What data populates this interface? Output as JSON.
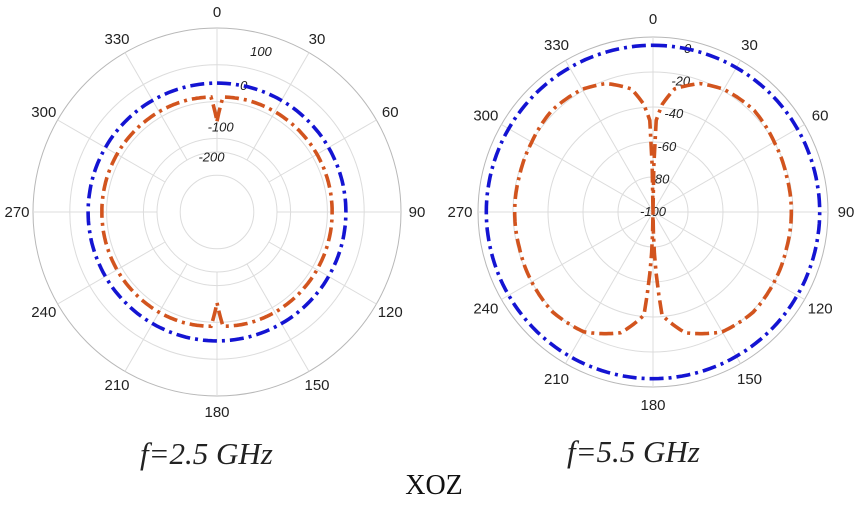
{
  "figure": {
    "plane_label": "XOZ"
  },
  "chart_data": [
    {
      "type": "polar-line",
      "caption": "f=2.5 GHz",
      "angle_ticks": [
        "0",
        "30",
        "60",
        "90",
        "120",
        "150",
        "180",
        "210",
        "240",
        "270",
        "300",
        "330"
      ],
      "radial_ticks": [
        100,
        0,
        -100,
        -200
      ],
      "rlim": [
        -200,
        160
      ],
      "grid": true,
      "series": [
        {
          "color": "#1414d2",
          "style": "dash-dot",
          "r": 0
        },
        {
          "color": "#d2541e",
          "style": "dash-dot",
          "samples": [
            {
              "theta": 0,
              "r": -111
            },
            {
              "theta": 3,
              "r": -40
            },
            {
              "theta": 15,
              "r": -38
            },
            {
              "theta": 30,
              "r": -38
            },
            {
              "theta": 60,
              "r": -39
            },
            {
              "theta": 90,
              "r": -40
            },
            {
              "theta": 120,
              "r": -39
            },
            {
              "theta": 150,
              "r": -38
            },
            {
              "theta": 165,
              "r": -39
            },
            {
              "theta": 177,
              "r": -42
            },
            {
              "theta": 180,
              "r": -111
            },
            {
              "theta": 183,
              "r": -42
            },
            {
              "theta": 195,
              "r": -39
            },
            {
              "theta": 210,
              "r": -38
            },
            {
              "theta": 240,
              "r": -39
            },
            {
              "theta": 270,
              "r": -40
            },
            {
              "theta": 300,
              "r": -39
            },
            {
              "theta": 330,
              "r": -38
            },
            {
              "theta": 345,
              "r": -38
            },
            {
              "theta": 357,
              "r": -40
            },
            {
              "theta": 360,
              "r": -111
            }
          ]
        }
      ]
    },
    {
      "type": "polar-line",
      "caption": "f=5.5 GHz",
      "angle_ticks": [
        "0",
        "30",
        "60",
        "90",
        "120",
        "150",
        "180",
        "210",
        "240",
        "270",
        "300",
        "330"
      ],
      "radial_ticks": [
        0,
        -20,
        -40,
        -60,
        -80,
        -100
      ],
      "rlim": [
        -100,
        5
      ],
      "grid": true,
      "series": [
        {
          "color": "#1414d2",
          "style": "dash-dot",
          "r": 0
        },
        {
          "color": "#d2541e",
          "style": "dash-dot",
          "samples": [
            {
              "theta": 0,
              "r": -100
            },
            {
              "theta": 2,
              "r": -45
            },
            {
              "theta": 5,
              "r": -35
            },
            {
              "theta": 10,
              "r": -25
            },
            {
              "theta": 20,
              "r": -18
            },
            {
              "theta": 30,
              "r": -15
            },
            {
              "theta": 45,
              "r": -14
            },
            {
              "theta": 60,
              "r": -16
            },
            {
              "theta": 75,
              "r": -17
            },
            {
              "theta": 90,
              "r": -17
            },
            {
              "theta": 105,
              "r": -17
            },
            {
              "theta": 120,
              "r": -16
            },
            {
              "theta": 135,
              "r": -15
            },
            {
              "theta": 150,
              "r": -17
            },
            {
              "theta": 165,
              "r": -25
            },
            {
              "theta": 175,
              "r": -38
            },
            {
              "theta": 180,
              "r": -100
            },
            {
              "theta": 185,
              "r": -38
            },
            {
              "theta": 195,
              "r": -25
            },
            {
              "theta": 210,
              "r": -17
            },
            {
              "theta": 225,
              "r": -15
            },
            {
              "theta": 240,
              "r": -16
            },
            {
              "theta": 255,
              "r": -17
            },
            {
              "theta": 270,
              "r": -17
            },
            {
              "theta": 285,
              "r": -17
            },
            {
              "theta": 300,
              "r": -16
            },
            {
              "theta": 315,
              "r": -14
            },
            {
              "theta": 330,
              "r": -15
            },
            {
              "theta": 340,
              "r": -18
            },
            {
              "theta": 350,
              "r": -25
            },
            {
              "theta": 355,
              "r": -35
            },
            {
              "theta": 358,
              "r": -45
            },
            {
              "theta": 360,
              "r": -100
            }
          ]
        }
      ]
    }
  ]
}
